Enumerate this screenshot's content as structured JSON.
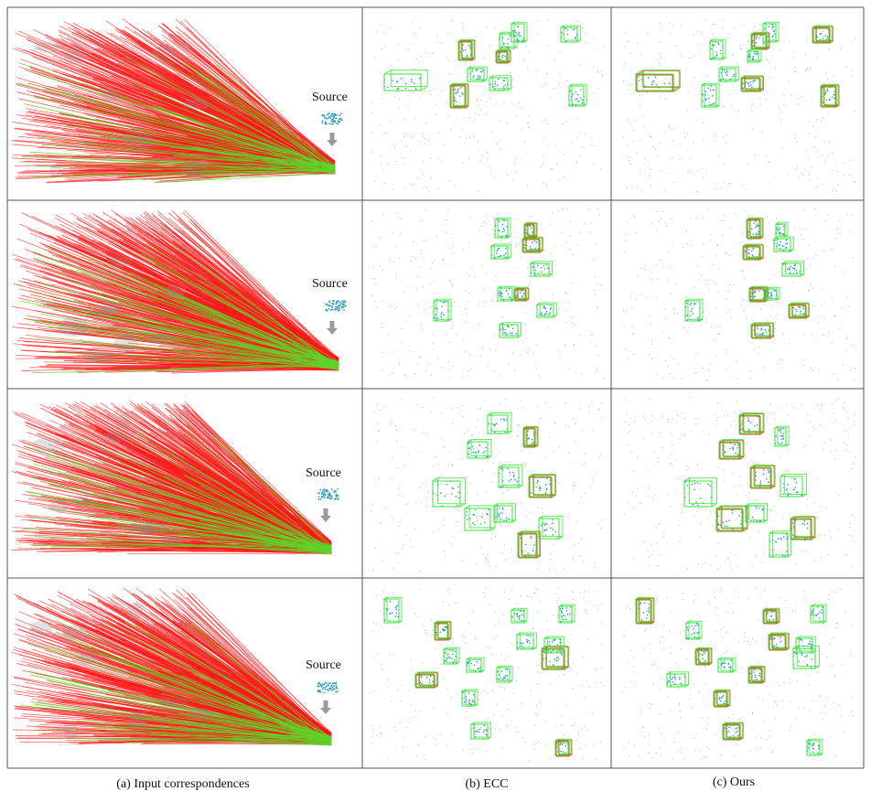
{
  "figure": {
    "columns": [
      {
        "caption": "(a) Input correspondences"
      },
      {
        "caption": "(b) ECC"
      },
      {
        "caption": "(c) Ours"
      }
    ],
    "rows": [
      {
        "source_label": "Source"
      },
      {
        "source_label": "Source"
      },
      {
        "source_label": "Source"
      },
      {
        "source_label": "Source"
      }
    ],
    "colors": {
      "outlier_lines": "#ff1a1a",
      "inlier_lines": "#5fd32a",
      "gt_box": "#39e639",
      "estimate_box": "#c8641e",
      "instance_points": "#2a9bc0",
      "background_points": "#8c8c8c",
      "arrow": "#9a9a9a",
      "grid": "#555555"
    }
  }
}
